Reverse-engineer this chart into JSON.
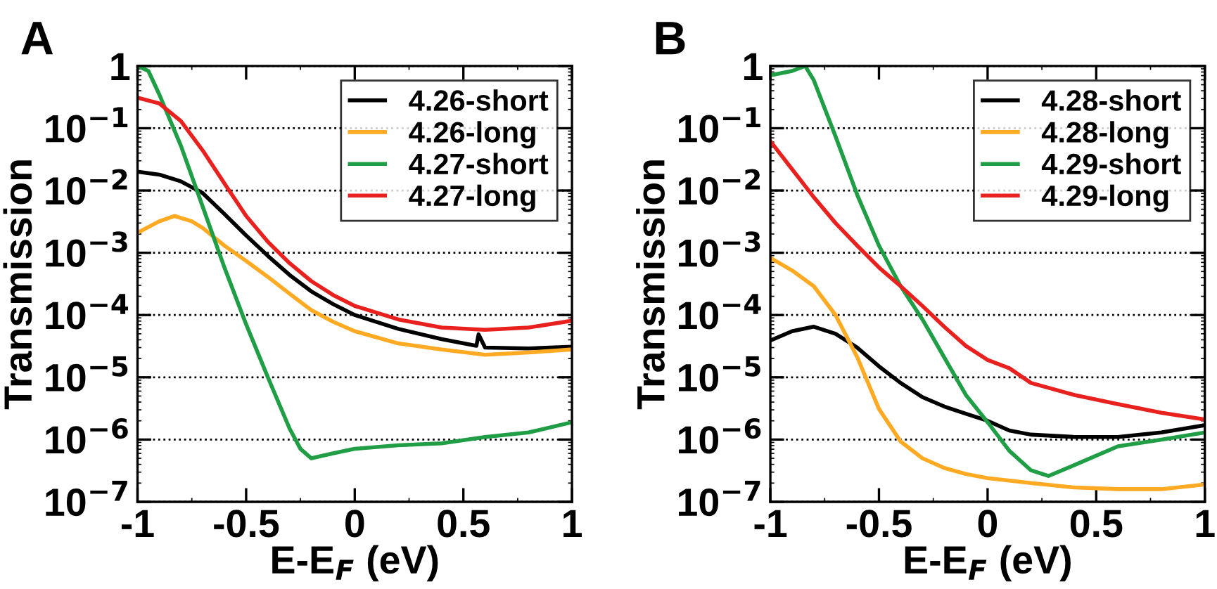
{
  "chart_data": [
    {
      "type": "line",
      "title": "A",
      "xlabel": "E-E$_{F}$ (eV)",
      "ylabel": "Transmission",
      "log": "y",
      "grid": "y",
      "legend": "top right",
      "xlim": [
        -1,
        1
      ],
      "xticks": [
        -1,
        -0.5,
        0,
        0.5,
        1
      ],
      "ylim": [
        1e-07,
        1
      ],
      "yticks": [
        {
          "value": 1e-07,
          "label": "10$^{−7}$"
        },
        {
          "value": 1e-06,
          "label": "10$^{−6}$"
        },
        {
          "value": 1e-05,
          "label": "10$^{−5}$"
        },
        {
          "value": 0.0001,
          "label": "10$^{−4}$"
        },
        {
          "value": 0.001,
          "label": "10$^{−3}$"
        },
        {
          "value": 0.01,
          "label": "10$^{−2}$"
        },
        {
          "value": 0.1,
          "label": "10$^{−1}$"
        },
        1
      ],
      "series": [
        {
          "name": "4.26-short",
          "color": "#000000",
          "x": [
            -1,
            -0.9,
            -0.8,
            -0.7,
            -0.6,
            -0.5,
            -0.4,
            -0.3,
            -0.2,
            -0.1,
            0,
            0.2,
            0.4,
            0.56,
            0.57,
            0.6,
            0.8,
            1
          ],
          "values": [
            0.02,
            0.018,
            0.014,
            0.0091,
            0.0042,
            0.0019,
            0.00089,
            0.00044,
            0.00024,
            0.00015,
            0.0001,
            6e-05,
            4.1e-05,
            3.2e-05,
            4.9e-05,
            3e-05,
            2.9e-05,
            3.1e-05
          ]
        },
        {
          "name": "4.26-long",
          "color": "#ffaa22",
          "x": [
            -1,
            -0.9,
            -0.83,
            -0.75,
            -0.7,
            -0.6,
            -0.5,
            -0.4,
            -0.3,
            -0.2,
            -0.1,
            0,
            0.2,
            0.4,
            0.6,
            0.8,
            1
          ],
          "values": [
            0.0021,
            0.0032,
            0.0039,
            0.0032,
            0.0025,
            0.0013,
            0.00074,
            0.00041,
            0.00022,
            0.00012,
            7.8e-05,
            5.5e-05,
            3.5e-05,
            2.8e-05,
            2.3e-05,
            2.5e-05,
            2.8e-05
          ]
        },
        {
          "name": "4.27-short",
          "color": "#1f9e46",
          "x": [
            -1,
            -0.95,
            -0.9,
            -0.8,
            -0.7,
            -0.6,
            -0.5,
            -0.4,
            -0.3,
            -0.25,
            -0.2,
            -0.1,
            0,
            0.2,
            0.4,
            0.6,
            0.8,
            1
          ],
          "values": [
            1,
            0.83,
            0.35,
            0.052,
            0.0055,
            0.00058,
            7.1e-05,
            1e-05,
            1.5e-06,
            7.1e-07,
            5e-07,
            6e-07,
            7.1e-07,
            8.1e-07,
            8.7e-07,
            1.1e-06,
            1.3e-06,
            1.9e-06
          ]
        },
        {
          "name": "4.27-long",
          "color": "#e8211f",
          "x": [
            -1,
            -0.9,
            -0.8,
            -0.7,
            -0.6,
            -0.5,
            -0.4,
            -0.3,
            -0.2,
            -0.1,
            0,
            0.2,
            0.4,
            0.6,
            0.8,
            1
          ],
          "values": [
            0.31,
            0.25,
            0.13,
            0.044,
            0.013,
            0.0039,
            0.0015,
            0.00068,
            0.00035,
            0.00021,
            0.00014,
            8.5e-05,
            6.3e-05,
            5.8e-05,
            6.3e-05,
            8.1e-05
          ]
        }
      ]
    },
    {
      "type": "line",
      "title": "B",
      "xlabel": "E-E$_{F}$ (eV)",
      "ylabel": "Transmission",
      "log": "y",
      "grid": "y",
      "legend": "top right",
      "xlim": [
        -1,
        1
      ],
      "xticks": [
        -1,
        -0.5,
        0,
        0.5,
        1
      ],
      "ylim": [
        1e-07,
        1
      ],
      "yticks": [
        {
          "value": 1e-07,
          "label": "10$^{−7}$"
        },
        {
          "value": 1e-06,
          "label": "10$^{−6}$"
        },
        {
          "value": 1e-05,
          "label": "10$^{−5}$"
        },
        {
          "value": 0.0001,
          "label": "10$^{−4}$"
        },
        {
          "value": 0.001,
          "label": "10$^{−3}$"
        },
        {
          "value": 0.01,
          "label": "10$^{−2}$"
        },
        {
          "value": 0.1,
          "label": "10$^{−1}$"
        },
        1
      ],
      "series": [
        {
          "name": "4.28-short",
          "color": "#000000",
          "x": [
            -1,
            -0.9,
            -0.8,
            -0.7,
            -0.6,
            -0.5,
            -0.4,
            -0.3,
            -0.2,
            -0.1,
            0,
            0.1,
            0.2,
            0.4,
            0.6,
            0.8,
            1
          ],
          "values": [
            3.9e-05,
            5.5e-05,
            6.5e-05,
            5e-05,
            3e-05,
            1.5e-05,
            8.1e-06,
            4.8e-06,
            3.4e-06,
            2.6e-06,
            2e-06,
            1.4e-06,
            1.2e-06,
            1.1e-06,
            1.1e-06,
            1.3e-06,
            1.7e-06
          ]
        },
        {
          "name": "4.28-long",
          "color": "#ffaa22",
          "x": [
            -1,
            -0.9,
            -0.8,
            -0.7,
            -0.6,
            -0.5,
            -0.4,
            -0.3,
            -0.2,
            -0.1,
            0,
            0.2,
            0.4,
            0.6,
            0.8,
            1
          ],
          "values": [
            0.00083,
            0.00052,
            0.00029,
            0.0001,
            2.1e-05,
            3.1e-06,
            9.3e-07,
            5e-07,
            3.5e-07,
            2.8e-07,
            2.4e-07,
            2e-07,
            1.7e-07,
            1.6e-07,
            1.6e-07,
            1.9e-07
          ]
        },
        {
          "name": "4.29-short",
          "color": "#1f9e46",
          "x": [
            -1,
            -0.9,
            -0.84,
            -0.8,
            -0.7,
            -0.6,
            -0.5,
            -0.4,
            -0.3,
            -0.2,
            -0.1,
            0,
            0.1,
            0.2,
            0.28,
            0.4,
            0.6,
            0.8,
            1
          ],
          "values": [
            0.71,
            0.83,
            1,
            0.59,
            0.074,
            0.0085,
            0.0013,
            0.00029,
            8.5e-05,
            2.1e-05,
            5.2e-06,
            1.9e-06,
            6.6e-07,
            3.2e-07,
            2.6e-07,
            3.9e-07,
            7.8e-07,
            1e-06,
            1.3e-06
          ]
        },
        {
          "name": "4.29-long",
          "color": "#e8211f",
          "x": [
            -1,
            -0.9,
            -0.8,
            -0.7,
            -0.6,
            -0.5,
            -0.4,
            -0.3,
            -0.2,
            -0.1,
            0,
            0.1,
            0.2,
            0.4,
            0.6,
            0.8,
            1
          ],
          "values": [
            0.062,
            0.022,
            0.0078,
            0.003,
            0.0013,
            0.00058,
            0.00029,
            0.00014,
            6.5e-05,
            3.2e-05,
            1.9e-05,
            1.4e-05,
            8.1e-06,
            5.2e-06,
            3.7e-06,
            2.7e-06,
            2.1e-06
          ]
        }
      ]
    }
  ]
}
